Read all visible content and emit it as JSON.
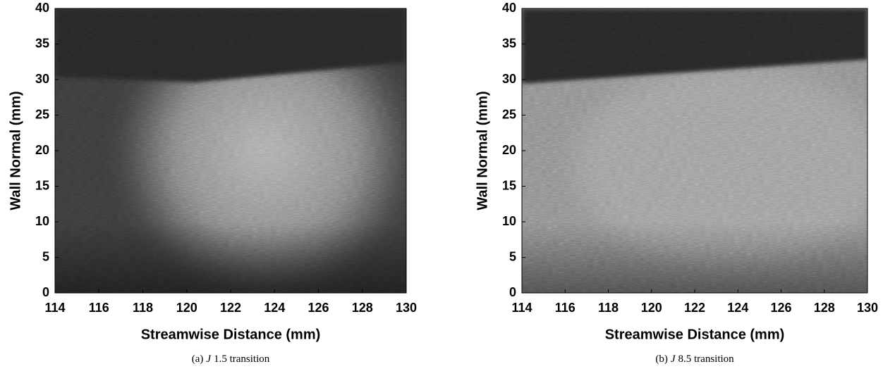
{
  "chart_data": [
    {
      "type": "image",
      "colormap": "gray",
      "xlabel": "Streamwise Distance (mm)",
      "ylabel": "Wall Normal (mm)",
      "xlim": [
        114,
        130
      ],
      "ylim": [
        0,
        40
      ],
      "xticks": [
        114,
        116,
        118,
        120,
        122,
        124,
        126,
        128,
        130
      ],
      "yticks": [
        0,
        5,
        10,
        15,
        20,
        25,
        30,
        35,
        40
      ],
      "caption": {
        "label": "(a)",
        "symbol": "J",
        "text": "1.5 transition"
      }
    },
    {
      "type": "image",
      "colormap": "gray",
      "xlabel": "Streamwise Distance (mm)",
      "ylabel": "Wall Normal (mm)",
      "xlim": [
        114,
        130
      ],
      "ylim": [
        0,
        40
      ],
      "xticks": [
        114,
        116,
        118,
        120,
        122,
        124,
        126,
        128,
        130
      ],
      "yticks": [
        0,
        5,
        10,
        15,
        20,
        25,
        30,
        35,
        40
      ],
      "caption": {
        "label": "(b)",
        "symbol": "J",
        "text": "8.5 transition"
      }
    }
  ]
}
